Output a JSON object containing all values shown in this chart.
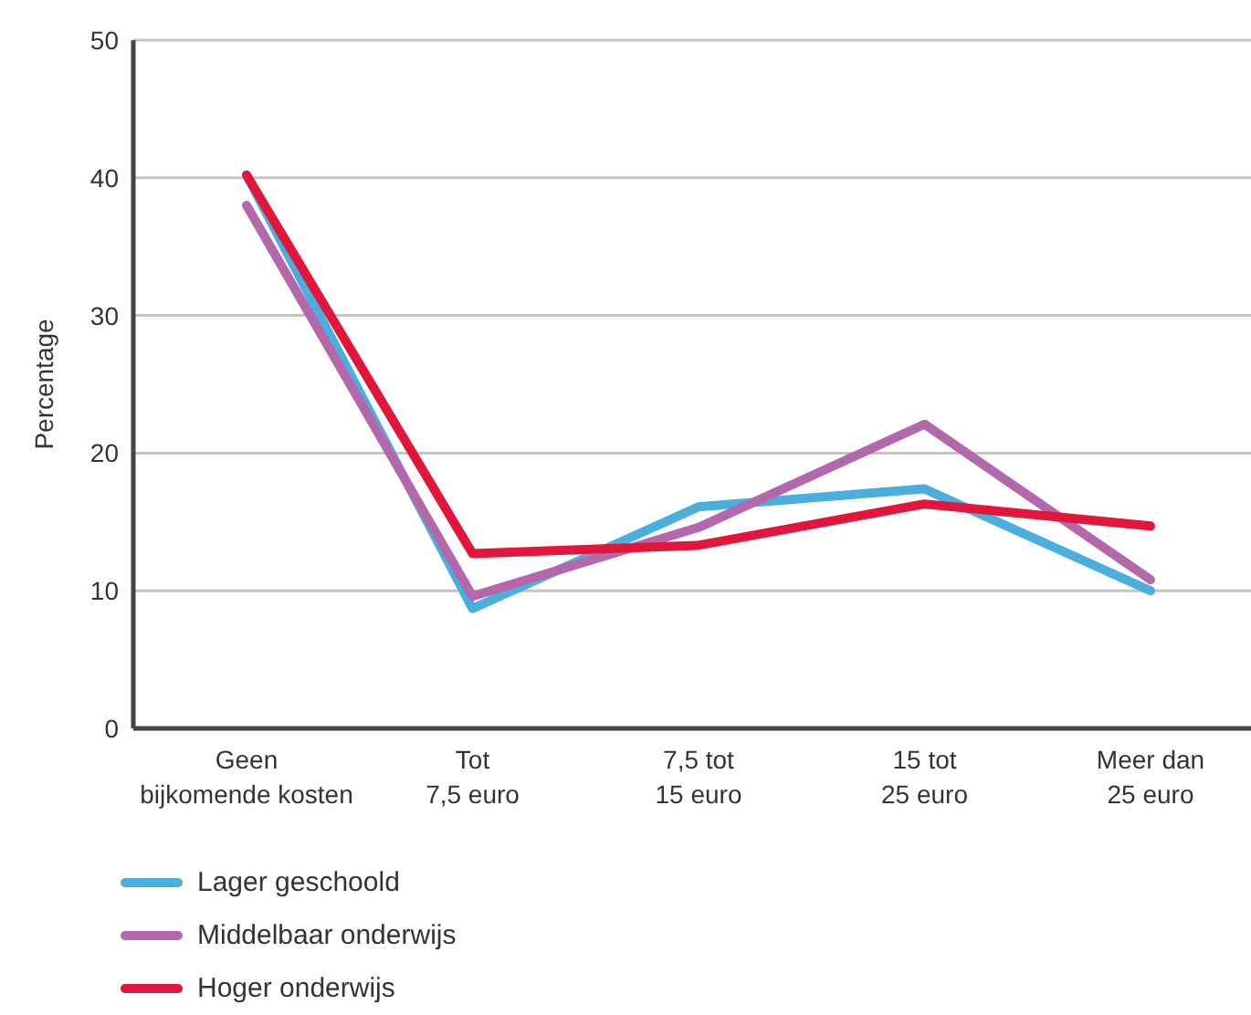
{
  "chart_data": {
    "type": "line",
    "ylabel": "Percentage",
    "categories": [
      "Geen\nbijkomende kosten",
      "Tot\n7,5 euro",
      "7,5 tot\n15 euro",
      "15 tot\n25 euro",
      "Meer dan\n25 euro"
    ],
    "series": [
      {
        "name": "Lager geschoold",
        "color": "#4aafdc",
        "values": [
          40.2,
          8.7,
          16.1,
          17.4,
          10.0
        ]
      },
      {
        "name": "Middelbaar onderwijs",
        "color": "#b468ab",
        "values": [
          38.0,
          9.6,
          14.6,
          22.1,
          10.8
        ]
      },
      {
        "name": "Hoger onderwijs",
        "color": "#e2163a",
        "values": [
          40.2,
          12.7,
          13.3,
          16.3,
          14.7
        ]
      }
    ],
    "ylim": [
      0,
      50
    ],
    "yticks": [
      0,
      10,
      20,
      30,
      40,
      50
    ],
    "grid": "y",
    "legend": "bottom",
    "marker": "none",
    "line_style": "solid"
  }
}
